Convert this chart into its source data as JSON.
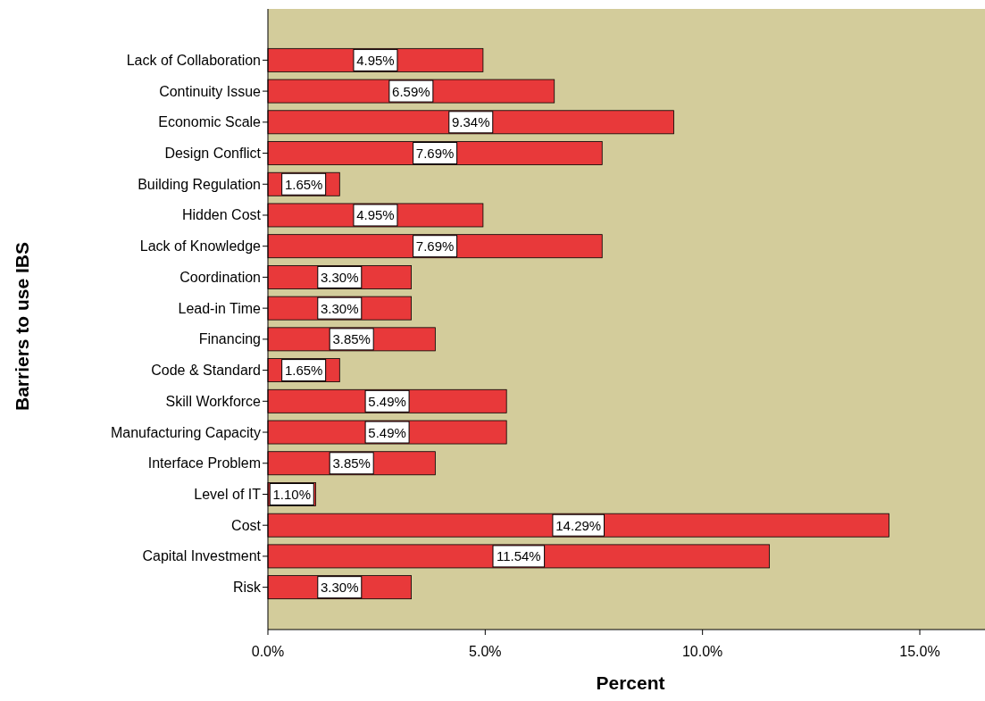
{
  "chart_data": {
    "type": "bar",
    "orientation": "horizontal",
    "xlabel": "Percent",
    "ylabel": "Barriers to use IBS",
    "categories": [
      "Lack of Collaboration",
      "Continuity Issue",
      "Economic Scale",
      "Design Conflict",
      "Building Regulation",
      "Hidden Cost",
      "Lack of Knowledge",
      "Coordination",
      "Lead-in Time",
      "Financing",
      "Code & Standard",
      "Skill Workforce",
      "Manufacturing Capacity",
      "Interface Problem",
      "Level of IT",
      "Cost",
      "Capital Investment",
      "Risk"
    ],
    "values": [
      4.95,
      6.59,
      9.34,
      7.69,
      1.65,
      4.95,
      7.69,
      3.3,
      3.3,
      3.85,
      1.65,
      5.49,
      5.49,
      3.85,
      1.1,
      14.29,
      11.54,
      3.3
    ],
    "value_labels": [
      "4.95%",
      "6.59%",
      "9.34%",
      "7.69%",
      "1.65%",
      "4.95%",
      "7.69%",
      "3.30%",
      "3.30%",
      "3.85%",
      "1.65%",
      "5.49%",
      "5.49%",
      "3.85%",
      "1.10%",
      "14.29%",
      "11.54%",
      "3.30%"
    ],
    "color": "#e8393a",
    "xlim": [
      0,
      16.5
    ],
    "xticks": [
      {
        "value": 0,
        "label": "0.0%"
      },
      {
        "value": 5,
        "label": "5.0%"
      },
      {
        "value": 10,
        "label": "10.0%"
      },
      {
        "value": 15,
        "label": "15.0%"
      }
    ],
    "grid": false
  }
}
